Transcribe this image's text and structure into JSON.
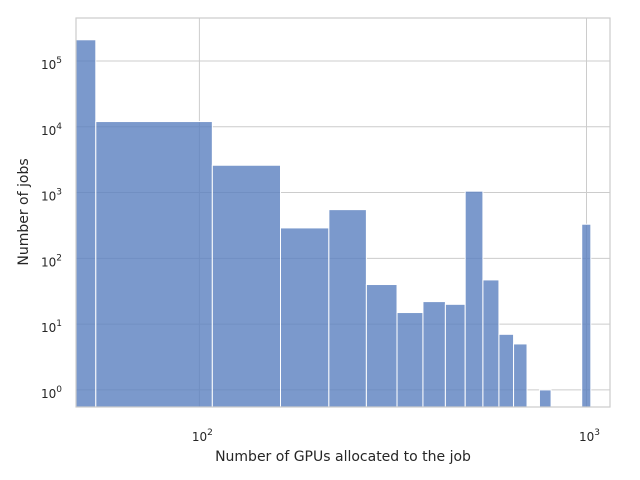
{
  "chart_data": {
    "type": "bar",
    "subtype": "histogram",
    "title": "",
    "xlabel": "Number of GPUs allocated to the job",
    "ylabel": "Number of jobs",
    "x_scale": "log",
    "y_scale": "log",
    "xlim": [
      48,
      1150
    ],
    "ylim": [
      0.55,
      450000
    ],
    "grid": true,
    "x_ticks": [
      {
        "value": 100,
        "base": "10",
        "exp": "2"
      },
      {
        "value": 1000,
        "base": "10",
        "exp": "3"
      }
    ],
    "y_ticks": [
      {
        "value": 1,
        "base": "10",
        "exp": "0"
      },
      {
        "value": 10,
        "base": "10",
        "exp": "1"
      },
      {
        "value": 100,
        "base": "10",
        "exp": "2"
      },
      {
        "value": 1000,
        "base": "10",
        "exp": "3"
      },
      {
        "value": 10000,
        "base": "10",
        "exp": "4"
      },
      {
        "value": 100000,
        "base": "10",
        "exp": "5"
      }
    ],
    "bins": [
      {
        "x0": 48,
        "x1": 54,
        "count": 210000
      },
      {
        "x0": 54,
        "x1": 108,
        "count": 12000
      },
      {
        "x0": 108,
        "x1": 162,
        "count": 2600
      },
      {
        "x0": 162,
        "x1": 216,
        "count": 290
      },
      {
        "x0": 216,
        "x1": 270,
        "count": 550
      },
      {
        "x0": 270,
        "x1": 324,
        "count": 40
      },
      {
        "x0": 324,
        "x1": 378,
        "count": 15
      },
      {
        "x0": 378,
        "x1": 432,
        "count": 22
      },
      {
        "x0": 432,
        "x1": 486,
        "count": 20
      },
      {
        "x0": 486,
        "x1": 540,
        "count": 1050
      },
      {
        "x0": 540,
        "x1": 594,
        "count": 47
      },
      {
        "x0": 594,
        "x1": 648,
        "count": 7
      },
      {
        "x0": 648,
        "x1": 702,
        "count": 5
      },
      {
        "x0": 756,
        "x1": 810,
        "count": 1
      },
      {
        "x0": 972,
        "x1": 1026,
        "count": 330
      }
    ],
    "color": "#5a7fbf"
  }
}
